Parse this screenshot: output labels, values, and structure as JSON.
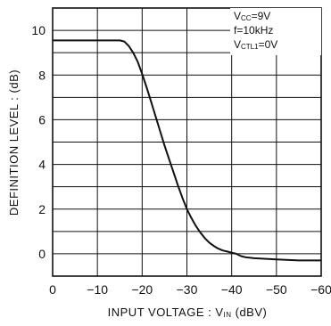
{
  "chart_data": {
    "type": "line",
    "title": "",
    "xlabel": {
      "main": "INPUT  VOLTAGE : V",
      "sub": "IN",
      "unit": "(dBV)"
    },
    "ylabel": "DEFINITION  LEVEL : (dB)",
    "xlim": [
      0,
      -60
    ],
    "ylim": [
      -1,
      11
    ],
    "grid": true,
    "x_tick_values": [
      0,
      -10,
      -20,
      -30,
      -40,
      -50,
      -60
    ],
    "x_tick_labels": [
      "0",
      "−10",
      "−20",
      "−30",
      "−40",
      "−50",
      "−60"
    ],
    "y_tick_values": [
      0,
      2,
      4,
      6,
      8,
      10
    ],
    "y_tick_labels": [
      "0",
      "2",
      "4",
      "6",
      "8",
      "10"
    ],
    "conditions": [
      {
        "main": "V",
        "sub": "CC",
        "rest": "=9V"
      },
      {
        "main": "f=10kHz",
        "sub": "",
        "rest": ""
      },
      {
        "main": "V",
        "sub": "CTL1",
        "rest": "=0V"
      }
    ],
    "series": [
      {
        "x": [
          0,
          -5,
          -10,
          -15,
          -16,
          -17,
          -18,
          -19,
          -20,
          -21,
          -22,
          -23,
          -24,
          -25,
          -26,
          -27,
          -28,
          -29,
          -30,
          -31,
          -32,
          -33,
          -34,
          -35,
          -36,
          -37,
          -38,
          -39,
          -40,
          -41,
          -42,
          -43,
          -45,
          -50,
          -55,
          -60
        ],
        "y": [
          9.55,
          9.55,
          9.55,
          9.55,
          9.5,
          9.3,
          9.0,
          8.6,
          8.05,
          7.45,
          6.8,
          6.15,
          5.5,
          4.85,
          4.25,
          3.65,
          3.05,
          2.5,
          2.0,
          1.6,
          1.25,
          0.95,
          0.7,
          0.5,
          0.35,
          0.23,
          0.15,
          0.1,
          0.05,
          0.0,
          -0.1,
          -0.15,
          -0.2,
          -0.25,
          -0.3,
          -0.3
        ]
      }
    ]
  }
}
